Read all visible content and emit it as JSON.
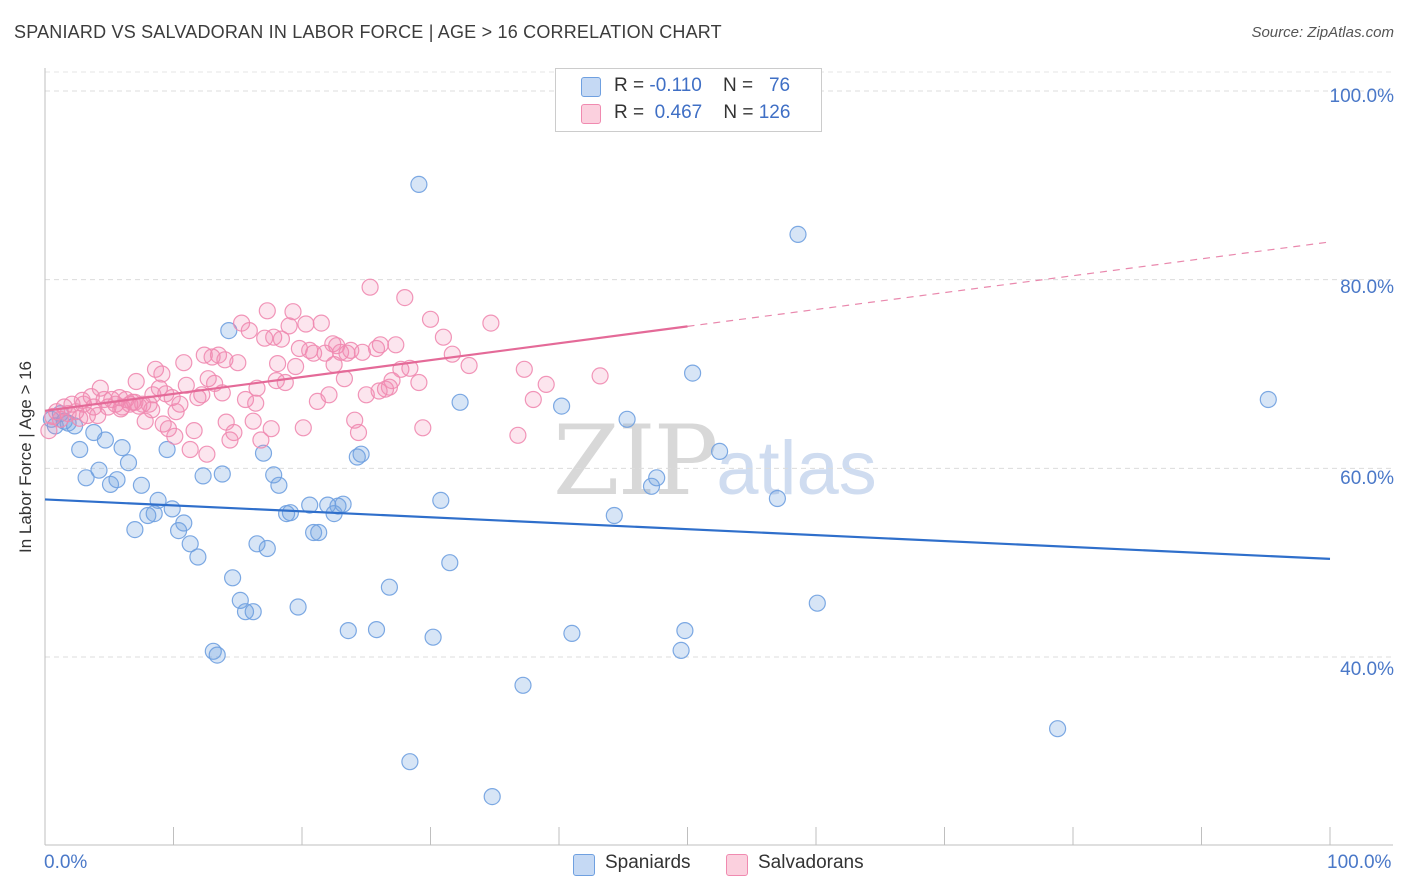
{
  "chart_data": {
    "type": "scatter",
    "title": "SPANIARD VS SALVADORAN IN LABOR FORCE | AGE > 16 CORRELATION CHART",
    "source": "Source: ZipAtlas.com",
    "ylabel": "In Labor Force | Age > 16",
    "xlabel": "",
    "xlim": [
      0,
      100
    ],
    "ylim": [
      20,
      104
    ],
    "x_tick_labels": [
      "0.0%",
      "100.0%"
    ],
    "y_ticks": [
      {
        "value": 100,
        "label": "100.0%"
      },
      {
        "value": 80,
        "label": "80.0%"
      },
      {
        "value": 60,
        "label": "60.0%"
      },
      {
        "value": 40,
        "label": "40.0%"
      }
    ],
    "grid": true,
    "legend_position": "top-center",
    "series": [
      {
        "name": "Spaniards",
        "color": "#6fa0e0",
        "line_color": "#2f6fcb",
        "R": "-0.110",
        "N": "76",
        "trend": {
          "x0": 0,
          "y0": 56.7,
          "x1": 100,
          "y1": 50.4,
          "solid_until": 100
        },
        "points": [
          [
            0.5,
            65.2
          ],
          [
            0.8,
            64.5
          ],
          [
            1.2,
            65.8
          ],
          [
            1.5,
            65.0
          ],
          [
            1.8,
            64.8
          ],
          [
            2.3,
            64.5
          ],
          [
            2.7,
            62.0
          ],
          [
            3.2,
            59.0
          ],
          [
            3.8,
            63.8
          ],
          [
            4.2,
            59.8
          ],
          [
            4.7,
            63.0
          ],
          [
            5.1,
            58.3
          ],
          [
            5.6,
            58.8
          ],
          [
            6.0,
            62.2
          ],
          [
            6.5,
            60.6
          ],
          [
            7.0,
            53.5
          ],
          [
            7.5,
            58.2
          ],
          [
            8.0,
            55.0
          ],
          [
            8.5,
            55.2
          ],
          [
            8.8,
            56.6
          ],
          [
            9.5,
            62.0
          ],
          [
            9.9,
            55.7
          ],
          [
            10.4,
            53.4
          ],
          [
            10.8,
            54.2
          ],
          [
            11.3,
            52.0
          ],
          [
            11.9,
            50.6
          ],
          [
            12.3,
            59.2
          ],
          [
            13.1,
            40.6
          ],
          [
            13.4,
            40.2
          ],
          [
            13.8,
            59.4
          ],
          [
            14.3,
            74.6
          ],
          [
            14.6,
            48.4
          ],
          [
            15.2,
            46.0
          ],
          [
            15.6,
            44.8
          ],
          [
            16.2,
            44.8
          ],
          [
            16.5,
            52.0
          ],
          [
            17.0,
            61.6
          ],
          [
            17.3,
            51.5
          ],
          [
            17.8,
            59.3
          ],
          [
            18.2,
            58.2
          ],
          [
            18.8,
            55.2
          ],
          [
            19.1,
            55.3
          ],
          [
            19.7,
            45.3
          ],
          [
            20.6,
            56.1
          ],
          [
            20.9,
            53.2
          ],
          [
            21.3,
            53.2
          ],
          [
            22.0,
            56.1
          ],
          [
            22.5,
            55.2
          ],
          [
            22.8,
            56.0
          ],
          [
            23.2,
            56.2
          ],
          [
            23.6,
            42.8
          ],
          [
            24.3,
            61.2
          ],
          [
            24.6,
            61.5
          ],
          [
            25.8,
            42.9
          ],
          [
            26.8,
            47.4
          ],
          [
            28.4,
            28.9
          ],
          [
            29.1,
            90.1
          ],
          [
            30.2,
            42.1
          ],
          [
            30.8,
            56.6
          ],
          [
            31.5,
            50.0
          ],
          [
            32.3,
            67.0
          ],
          [
            34.8,
            25.2
          ],
          [
            37.2,
            37.0
          ],
          [
            40.2,
            66.6
          ],
          [
            41.0,
            42.5
          ],
          [
            44.3,
            55.0
          ],
          [
            45.3,
            65.2
          ],
          [
            47.2,
            58.1
          ],
          [
            47.6,
            59.0
          ],
          [
            49.5,
            40.7
          ],
          [
            49.8,
            42.8
          ],
          [
            50.4,
            70.1
          ],
          [
            52.5,
            61.8
          ],
          [
            57.0,
            56.8
          ],
          [
            58.6,
            84.8
          ],
          [
            60.1,
            45.7
          ],
          [
            78.8,
            32.4
          ],
          [
            95.2,
            67.3
          ]
        ]
      },
      {
        "name": "Salvadorans",
        "color": "#f08ab0",
        "line_color": "#e46a98",
        "R": "0.467",
        "N": "126",
        "trend": {
          "x0": 0,
          "y0": 66.1,
          "x1": 100,
          "y1": 84.0,
          "solid_until": 50
        },
        "points": [
          [
            0.3,
            64.0
          ],
          [
            0.6,
            65.5
          ],
          [
            0.9,
            66.0
          ],
          [
            1.2,
            65.2
          ],
          [
            1.5,
            66.5
          ],
          [
            1.8,
            65.8
          ],
          [
            2.1,
            66.8
          ],
          [
            2.4,
            66.0
          ],
          [
            2.7,
            65.3
          ],
          [
            3.0,
            66.8
          ],
          [
            3.3,
            65.6
          ],
          [
            3.6,
            67.6
          ],
          [
            3.8,
            66.5
          ],
          [
            4.1,
            65.6
          ],
          [
            4.3,
            68.5
          ],
          [
            4.6,
            67.3
          ],
          [
            4.9,
            66.5
          ],
          [
            5.2,
            67.3
          ],
          [
            5.5,
            66.8
          ],
          [
            5.8,
            67.5
          ],
          [
            6.0,
            66.5
          ],
          [
            6.3,
            67.3
          ],
          [
            6.6,
            66.8
          ],
          [
            6.8,
            67.0
          ],
          [
            7.1,
            69.2
          ],
          [
            7.3,
            66.6
          ],
          [
            7.6,
            66.8
          ],
          [
            7.8,
            65.0
          ],
          [
            8.1,
            66.8
          ],
          [
            8.4,
            67.8
          ],
          [
            8.6,
            70.5
          ],
          [
            8.9,
            68.5
          ],
          [
            9.1,
            70.0
          ],
          [
            9.4,
            67.9
          ],
          [
            9.6,
            64.2
          ],
          [
            9.9,
            67.5
          ],
          [
            10.2,
            66.0
          ],
          [
            10.5,
            66.8
          ],
          [
            10.8,
            71.2
          ],
          [
            11.0,
            68.8
          ],
          [
            11.3,
            62.0
          ],
          [
            11.6,
            64.0
          ],
          [
            11.9,
            67.5
          ],
          [
            12.2,
            67.8
          ],
          [
            12.4,
            72.0
          ],
          [
            12.7,
            69.5
          ],
          [
            13.0,
            71.8
          ],
          [
            13.2,
            69.0
          ],
          [
            13.5,
            72.0
          ],
          [
            13.8,
            68.0
          ],
          [
            14.0,
            71.5
          ],
          [
            14.4,
            63.0
          ],
          [
            14.7,
            63.8
          ],
          [
            15.0,
            71.2
          ],
          [
            15.3,
            75.4
          ],
          [
            15.6,
            67.3
          ],
          [
            15.9,
            74.6
          ],
          [
            16.2,
            65.0
          ],
          [
            16.5,
            68.5
          ],
          [
            16.8,
            63.0
          ],
          [
            17.1,
            73.8
          ],
          [
            17.3,
            76.7
          ],
          [
            17.6,
            64.2
          ],
          [
            17.8,
            73.9
          ],
          [
            18.1,
            71.1
          ],
          [
            18.4,
            73.7
          ],
          [
            18.7,
            69.1
          ],
          [
            19.0,
            75.1
          ],
          [
            19.3,
            76.6
          ],
          [
            19.5,
            70.8
          ],
          [
            19.8,
            72.7
          ],
          [
            20.1,
            64.3
          ],
          [
            20.3,
            75.3
          ],
          [
            20.6,
            72.5
          ],
          [
            20.9,
            72.2
          ],
          [
            21.2,
            67.1
          ],
          [
            21.5,
            75.4
          ],
          [
            21.8,
            72.2
          ],
          [
            22.1,
            67.8
          ],
          [
            22.4,
            73.2
          ],
          [
            22.7,
            73.0
          ],
          [
            23.0,
            72.3
          ],
          [
            23.3,
            69.5
          ],
          [
            23.5,
            72.2
          ],
          [
            23.8,
            72.5
          ],
          [
            24.1,
            65.1
          ],
          [
            24.4,
            63.8
          ],
          [
            24.7,
            72.3
          ],
          [
            25.0,
            67.8
          ],
          [
            25.3,
            79.2
          ],
          [
            25.8,
            72.7
          ],
          [
            26.1,
            73.1
          ],
          [
            26.5,
            68.4
          ],
          [
            26.8,
            68.6
          ],
          [
            27.0,
            69.3
          ],
          [
            27.3,
            73.1
          ],
          [
            27.7,
            70.5
          ],
          [
            28.0,
            78.1
          ],
          [
            28.4,
            70.6
          ],
          [
            29.1,
            69.1
          ],
          [
            29.4,
            64.3
          ],
          [
            30.0,
            75.8
          ],
          [
            31.0,
            73.9
          ],
          [
            31.7,
            72.1
          ],
          [
            33.0,
            70.9
          ],
          [
            34.7,
            75.4
          ],
          [
            36.8,
            63.5
          ],
          [
            37.3,
            70.5
          ],
          [
            38.0,
            67.3
          ],
          [
            39.0,
            68.9
          ],
          [
            43.2,
            69.8
          ],
          [
            8.3,
            66.2
          ],
          [
            10.1,
            63.4
          ],
          [
            12.6,
            61.5
          ],
          [
            14.1,
            64.9
          ],
          [
            16.4,
            66.9
          ],
          [
            18.0,
            69.3
          ],
          [
            22.5,
            71.0
          ],
          [
            26.0,
            68.2
          ],
          [
            2.9,
            67.2
          ],
          [
            5.9,
            66.3
          ],
          [
            7.0,
            67.0
          ],
          [
            9.2,
            64.7
          ]
        ]
      }
    ]
  },
  "legend": {
    "r_label": "R =",
    "n_label": "N ="
  },
  "watermark": {
    "zip": "ZIP",
    "atlas": "atlas"
  }
}
